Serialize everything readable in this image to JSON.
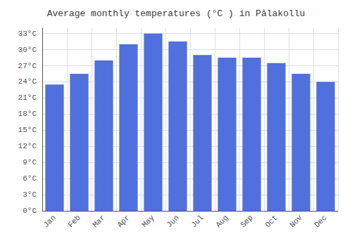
{
  "chart_data": {
    "type": "bar",
    "title": "Average monthly temperatures (°C ) in Pālakollu",
    "categories": [
      "Jan",
      "Feb",
      "Mar",
      "Apr",
      "May",
      "Jun",
      "Jul",
      "Aug",
      "Sep",
      "Oct",
      "Nov",
      "Dec"
    ],
    "values": [
      23.5,
      25.5,
      28.0,
      31.0,
      33.0,
      31.5,
      29.0,
      28.5,
      28.5,
      27.5,
      25.5,
      24.0
    ],
    "ylim": [
      0,
      34
    ],
    "yticks": [
      {
        "value": 0,
        "label": "0°C"
      },
      {
        "value": 3,
        "label": "3°C"
      },
      {
        "value": 6,
        "label": "6°C"
      },
      {
        "value": 9,
        "label": "9°C"
      },
      {
        "value": 12,
        "label": "12°C"
      },
      {
        "value": 15,
        "label": "15°C"
      },
      {
        "value": 18,
        "label": "18°C"
      },
      {
        "value": 21,
        "label": "21°C"
      },
      {
        "value": 24,
        "label": "24°C"
      },
      {
        "value": 27,
        "label": "27°C"
      },
      {
        "value": 30,
        "label": "30°C"
      },
      {
        "value": 33,
        "label": "33°C"
      }
    ],
    "grid": true
  }
}
